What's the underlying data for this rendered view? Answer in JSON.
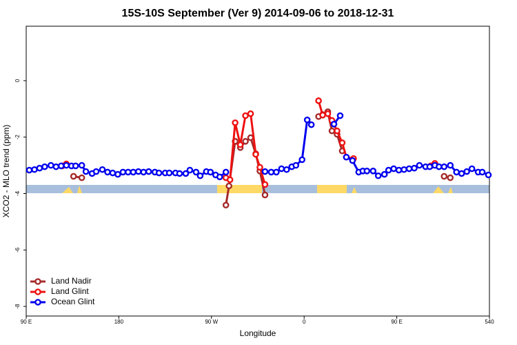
{
  "chart_data": {
    "type": "line",
    "title": "15S-10S September (Ver 9)   2014-09-06 to 2018-12-31",
    "x_label": "Longitude",
    "y_label": "XCO2 - MLO trend (ppm)",
    "xlim": [
      90,
      540
    ],
    "ylim": [
      -8.34,
      1.93
    ],
    "xticks": [
      {
        "value": 90,
        "label": "90 E"
      },
      180,
      {
        "value": 270,
        "label": "90 W"
      },
      {
        "value": 360,
        "label": "0"
      },
      {
        "value": 450,
        "label": "90 E"
      },
      540
    ],
    "yticks": [
      -8,
      -6,
      -4,
      -2,
      0
    ],
    "legend": "bottom-left",
    "series": [
      {
        "name": "Land Nadir",
        "color": "#a52a2a",
        "x": [
          136,
          144,
          null,
          284,
          287,
          293,
          298,
          303,
          308,
          313,
          317,
          322,
          null,
          374,
          378,
          383,
          387,
          392,
          397,
          null,
          496,
          502
        ],
        "values": [
          -3.39,
          -3.44,
          null,
          -4.41,
          -3.73,
          -2.15,
          -2.37,
          -2.15,
          -2.02,
          -2.59,
          -3.2,
          -4.05,
          null,
          -1.27,
          -1.2,
          -1.1,
          -1.78,
          -1.9,
          -2.49,
          null,
          -3.39,
          -3.44
        ]
      },
      {
        "name": "Land Glint",
        "color": "#ee1111",
        "x": [
          125,
          129,
          null,
          284,
          288,
          293,
          298,
          303,
          308,
          313,
          317,
          322,
          null,
          374,
          378,
          383,
          387,
          392,
          397,
          401,
          408,
          null,
          483,
          487
        ],
        "values": [
          -3.02,
          -2.95,
          null,
          -3.44,
          -3.51,
          -1.49,
          -2.27,
          -1.24,
          -1.17,
          -2.61,
          -3.07,
          -3.68,
          null,
          -0.71,
          -1.22,
          -1.17,
          -1.41,
          -1.78,
          -2.2,
          -2.71,
          -2.76,
          null,
          -3.02,
          -2.93
        ]
      },
      {
        "name": "Ocean Glint",
        "color": "#0000ee",
        "x": [
          93,
          98,
          103,
          108,
          114,
          119,
          124,
          129,
          134,
          138,
          144,
          148,
          154,
          158,
          164,
          169,
          174,
          179,
          184,
          189,
          194,
          199,
          204,
          209,
          215,
          219,
          225,
          229,
          235,
          239,
          245,
          249,
          255,
          259,
          265,
          269,
          274,
          278,
          284,
          null,
          322,
          328,
          333,
          338,
          343,
          348,
          352,
          358,
          363,
          367,
          null,
          389,
          395,
          null,
          401,
          407,
          413,
          417,
          421,
          427,
          432,
          438,
          442,
          447,
          452,
          457,
          462,
          467,
          472,
          478,
          482,
          487,
          491,
          496,
          502,
          508,
          513,
          518,
          523,
          529,
          533,
          539
        ],
        "values": [
          -3.17,
          -3.15,
          -3.1,
          -3.05,
          -3.0,
          -3.05,
          -3.02,
          -3.0,
          -3.02,
          -3.02,
          -3.0,
          -3.22,
          -3.29,
          -3.22,
          -3.15,
          -3.24,
          -3.27,
          -3.32,
          -3.24,
          -3.24,
          -3.24,
          -3.22,
          -3.24,
          -3.22,
          -3.24,
          -3.27,
          -3.27,
          -3.27,
          -3.27,
          -3.29,
          -3.29,
          -3.17,
          -3.24,
          -3.37,
          -3.22,
          -3.24,
          -3.34,
          -3.41,
          -3.24,
          null,
          -3.22,
          -3.24,
          -3.24,
          -3.12,
          -3.15,
          -3.05,
          -3.0,
          -2.8,
          -1.39,
          -1.56,
          null,
          -1.54,
          -1.24,
          null,
          -2.71,
          -2.83,
          -3.24,
          -3.2,
          -3.2,
          -3.2,
          -3.37,
          -3.32,
          -3.17,
          -3.12,
          -3.17,
          -3.15,
          -3.12,
          -3.1,
          -3.0,
          -3.05,
          -3.05,
          -3.0,
          -3.05,
          -3.05,
          -3.0,
          -3.24,
          -3.29,
          -3.22,
          -3.12,
          -3.24,
          -3.24,
          -3.34
        ]
      }
    ]
  }
}
